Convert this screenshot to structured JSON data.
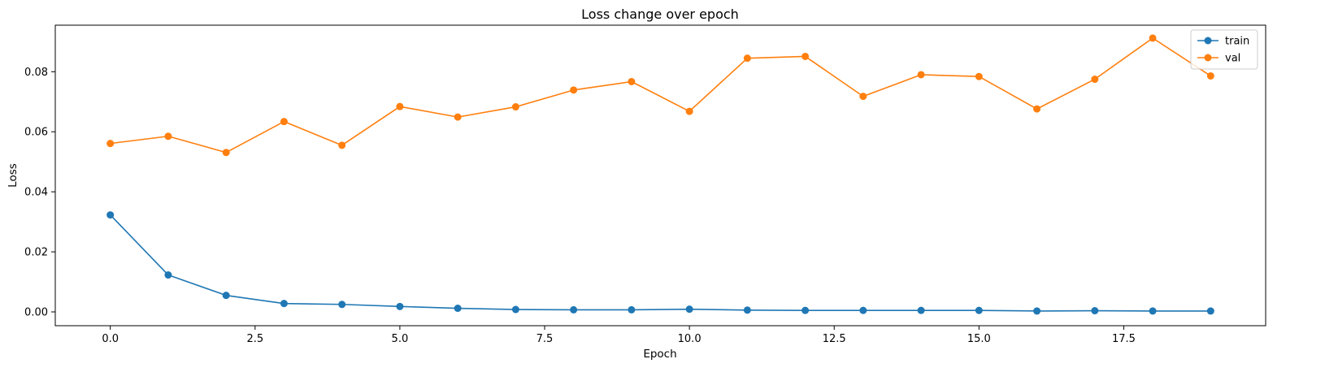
{
  "chart_data": {
    "type": "line",
    "title": "Loss change over epoch",
    "xlabel": "Epoch",
    "ylabel": "Loss",
    "x": [
      0,
      1,
      2,
      3,
      4,
      5,
      6,
      7,
      8,
      9,
      10,
      11,
      12,
      13,
      14,
      15,
      16,
      17,
      18,
      19
    ],
    "xlim": [
      -0.95,
      19.95
    ],
    "ylim": [
      -0.0046,
      0.0955
    ],
    "xticks": [
      "0.0",
      "2.5",
      "5.0",
      "7.5",
      "10.0",
      "12.5",
      "15.0",
      "17.5"
    ],
    "xtick_values": [
      0,
      2.5,
      5,
      7.5,
      10,
      12.5,
      15,
      17.5
    ],
    "yticks": [
      "0.00",
      "0.02",
      "0.04",
      "0.06",
      "0.08"
    ],
    "ytick_values": [
      0,
      0.02,
      0.04,
      0.06,
      0.08
    ],
    "grid": false,
    "legend_position": "top-right",
    "series": [
      {
        "name": "train",
        "color": "#1f77b4",
        "marker": "circle",
        "values": [
          0.0323,
          0.0123,
          0.0055,
          0.0028,
          0.0025,
          0.0018,
          0.0012,
          0.0008,
          0.0007,
          0.0007,
          0.0009,
          0.0006,
          0.0005,
          0.0005,
          0.0005,
          0.0005,
          0.0003,
          0.0004,
          0.0003,
          0.0003
        ]
      },
      {
        "name": "val",
        "color": "#ff7f0e",
        "marker": "circle",
        "values": [
          0.0561,
          0.0585,
          0.0531,
          0.0634,
          0.0555,
          0.0684,
          0.0649,
          0.0683,
          0.0739,
          0.0767,
          0.0668,
          0.0845,
          0.0851,
          0.0718,
          0.079,
          0.0784,
          0.0676,
          0.0775,
          0.0912,
          0.0786
        ]
      }
    ]
  }
}
